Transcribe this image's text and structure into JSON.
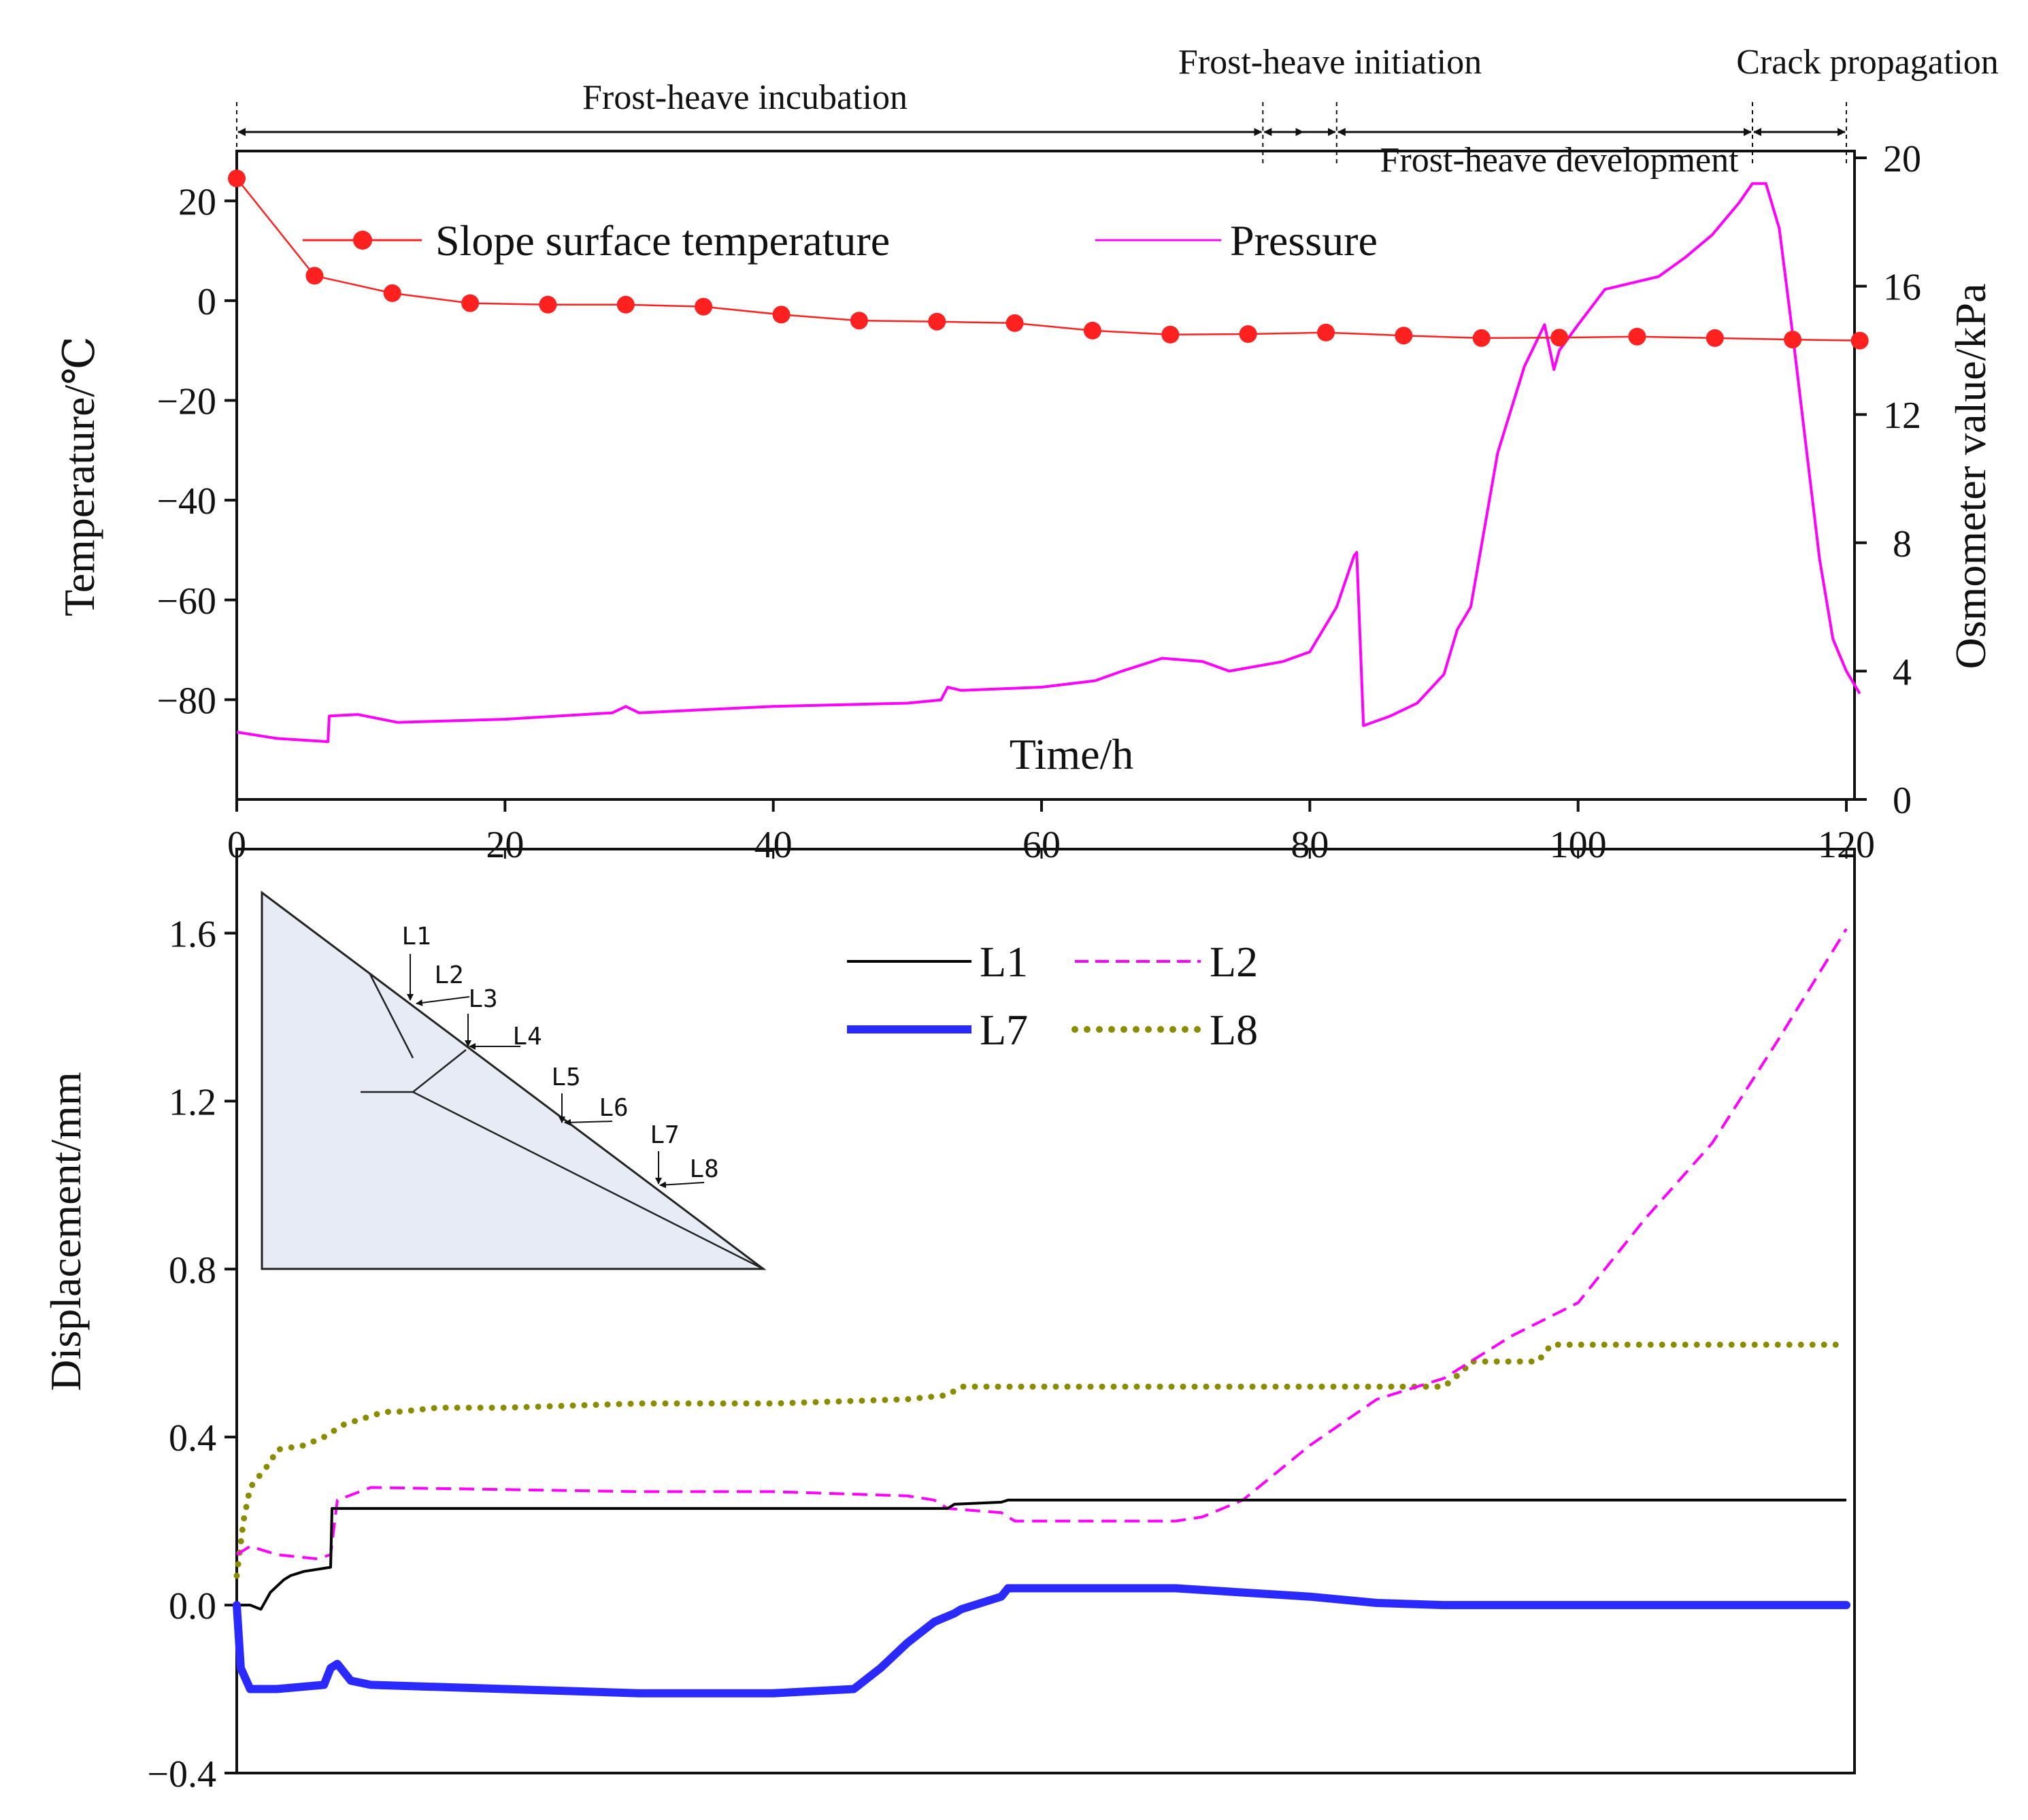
{
  "chart_data": [
    {
      "type": "line",
      "title": "",
      "xlabel": "Time/h",
      "ylabel": "Temperature/℃",
      "y2label": "Osmometer value/kPa",
      "xlim": [
        0,
        120
      ],
      "ylim": [
        -100,
        30
      ],
      "y2lim": [
        0,
        20
      ],
      "x_ticks": [
        "0",
        "20",
        "40",
        "60",
        "80",
        "100",
        "120"
      ],
      "y_ticks": [
        "20",
        "0",
        "−20",
        "−40",
        "−60",
        "−80"
      ],
      "y2_ticks": [
        "0",
        "4",
        "8",
        "12",
        "16",
        "20"
      ],
      "legend": "top-left",
      "phases": [
        {
          "label": "Frost-heave incubation",
          "start": 0,
          "end": 76.5
        },
        {
          "label": "Frost-heave initiation",
          "start": 76.5,
          "end": 82
        },
        {
          "label": "Frost-heave development",
          "start": 82,
          "end": 113
        },
        {
          "label": "Crack propagation",
          "start": 113,
          "end": 120
        }
      ],
      "series": [
        {
          "name": "Slope surface temperature",
          "axis": "left",
          "color": "#ff2020",
          "marker": "circle",
          "x": [
            0,
            5.8,
            11.6,
            17.4,
            23.2,
            29,
            34.8,
            40.6,
            46.4,
            52.2,
            58,
            63.8,
            69.6,
            75.4,
            81.2,
            87,
            92.8,
            98.6,
            104.4,
            110.2,
            116,
            121
          ],
          "y": [
            24.5,
            5,
            1.5,
            -0.5,
            -0.8,
            -0.8,
            -1.2,
            -2.8,
            -4,
            -4.2,
            -4.5,
            -6,
            -6.8,
            -6.7,
            -6.4,
            -7,
            -7.5,
            -7.4,
            -7.2,
            -7.5,
            -7.8,
            -8
          ]
        },
        {
          "name": "Pressure",
          "axis": "right",
          "color": "#ff00ff",
          "x": [
            0,
            3,
            6.8,
            6.9,
            9,
            12,
            20,
            28,
            29,
            30,
            40,
            50,
            52.5,
            53,
            54,
            60,
            64,
            66,
            69,
            72,
            74,
            78,
            80,
            82,
            83.3,
            83.5,
            84,
            86,
            88,
            90,
            91,
            92,
            94,
            96,
            97.5,
            98.2,
            98.6,
            100,
            102,
            104,
            106,
            108,
            110,
            112,
            113,
            114,
            115,
            116,
            117,
            118,
            119,
            120,
            121
          ],
          "y": [
            2.1,
            1.9,
            1.8,
            2.6,
            2.65,
            2.4,
            2.5,
            2.7,
            2.9,
            2.7,
            2.9,
            3.0,
            3.1,
            3.5,
            3.4,
            3.5,
            3.7,
            4.0,
            4.4,
            4.3,
            4.0,
            4.3,
            4.6,
            6.0,
            7.6,
            7.7,
            2.3,
            2.6,
            3.0,
            3.9,
            5.3,
            6.0,
            10.8,
            13.5,
            14.8,
            13.4,
            14.0,
            14.8,
            15.9,
            16.1,
            16.3,
            16.9,
            17.6,
            18.6,
            19.2,
            19.2,
            17.8,
            14.5,
            11.0,
            7.5,
            5.0,
            4.0,
            3.3
          ]
        }
      ]
    },
    {
      "type": "line",
      "title": "",
      "xlabel": "",
      "ylabel": "Displacement/mm",
      "xlim": [
        0,
        120
      ],
      "ylim": [
        -0.4,
        1.8
      ],
      "y_ticks": [
        "1.6",
        "1.2",
        "0.8",
        "0.4",
        "0.0",
        "−0.4"
      ],
      "legend": "top-center",
      "series": [
        {
          "name": "L1",
          "color": "#000000",
          "style": "solid",
          "x": [
            0,
            1,
            1.8,
            2.5,
            3.5,
            4,
            5,
            7,
            7.1,
            20,
            40,
            53,
            53.5,
            57,
            57.5,
            70,
            80,
            100,
            120
          ],
          "y": [
            0.0,
            0.0,
            -0.01,
            0.03,
            0.06,
            0.07,
            0.08,
            0.09,
            0.23,
            0.23,
            0.23,
            0.23,
            0.24,
            0.245,
            0.25,
            0.25,
            0.25,
            0.25,
            0.25
          ]
        },
        {
          "name": "L2",
          "color": "#ff00ff",
          "style": "dashed",
          "x": [
            0,
            0.5,
            1,
            3,
            6,
            7,
            7.5,
            10,
            20,
            30,
            40,
            50,
            52,
            53,
            57,
            58,
            64,
            68,
            70,
            72,
            75,
            80,
            85,
            90,
            95,
            100,
            105,
            110,
            115,
            120
          ],
          "y": [
            0.12,
            0.13,
            0.14,
            0.12,
            0.11,
            0.12,
            0.25,
            0.28,
            0.275,
            0.27,
            0.27,
            0.26,
            0.25,
            0.23,
            0.22,
            0.2,
            0.2,
            0.2,
            0.2,
            0.21,
            0.25,
            0.38,
            0.49,
            0.54,
            0.64,
            0.72,
            0.92,
            1.1,
            1.35,
            1.61
          ]
        },
        {
          "name": "L7",
          "color": "#2a2aff",
          "style": "solid-thick",
          "x": [
            0,
            0.3,
            1,
            3,
            6.5,
            7,
            7.5,
            8.5,
            10,
            20,
            30,
            40,
            46,
            48,
            50,
            52,
            53.5,
            54,
            57,
            57.5,
            60,
            70,
            75,
            80,
            85,
            90,
            100,
            110,
            120
          ],
          "y": [
            0.0,
            -0.15,
            -0.2,
            -0.2,
            -0.19,
            -0.15,
            -0.14,
            -0.18,
            -0.19,
            -0.2,
            -0.21,
            -0.21,
            -0.2,
            -0.15,
            -0.09,
            -0.04,
            -0.02,
            -0.01,
            0.02,
            0.04,
            0.04,
            0.04,
            0.03,
            0.02,
            0.005,
            0.0,
            0.0,
            0.0,
            0.0
          ]
        },
        {
          "name": "L8",
          "color": "#8b8b00",
          "style": "dotted",
          "x": [
            0,
            0.5,
            1,
            1.5,
            2,
            2.5,
            3,
            5,
            6.5,
            7,
            8,
            9,
            10,
            11,
            12,
            15,
            20,
            30,
            40,
            50,
            53,
            54,
            60,
            70,
            80,
            90,
            91.5,
            92,
            97,
            98,
            100,
            110,
            120
          ],
          "y": [
            0.07,
            0.2,
            0.28,
            0.3,
            0.32,
            0.34,
            0.37,
            0.38,
            0.4,
            0.41,
            0.43,
            0.44,
            0.45,
            0.46,
            0.46,
            0.47,
            0.47,
            0.48,
            0.48,
            0.49,
            0.5,
            0.52,
            0.52,
            0.52,
            0.52,
            0.52,
            0.56,
            0.58,
            0.58,
            0.62,
            0.62,
            0.62,
            0.62
          ]
        }
      ]
    }
  ],
  "inset": {
    "labels": [
      "L1",
      "L2",
      "L3",
      "L4",
      "L5",
      "L6",
      "L7",
      "L8"
    ],
    "fill": "#e6ebf5"
  }
}
